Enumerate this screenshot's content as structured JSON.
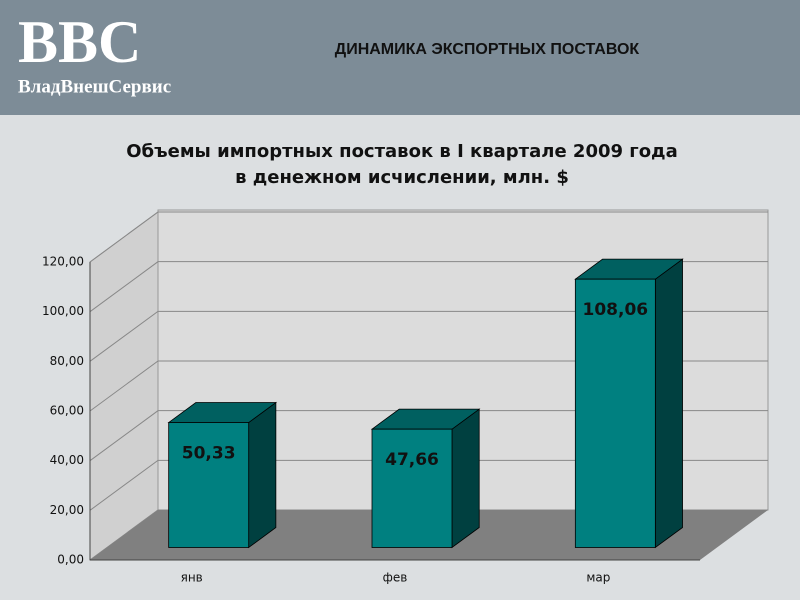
{
  "header": {
    "logo": "BBC",
    "logo_subtitle": "ВладВнешСервис",
    "title": "ДИНАМИКА ЭКСПОРТНЫХ ПОСТАВОК"
  },
  "chart_data": {
    "type": "bar3d",
    "title": [
      "Объемы импортных поставок в I квартале 2009 года",
      "в денежном исчислении, млн. $"
    ],
    "categories": [
      "янв",
      "фев",
      "мар"
    ],
    "values": [
      50.33,
      47.66,
      108.06
    ],
    "value_labels": [
      "50,33",
      "47,66",
      "108,06"
    ],
    "color": "#008080",
    "ylim": [
      0,
      120
    ],
    "yticks": [
      {
        "value": 0,
        "label": "0,00"
      },
      {
        "value": 20,
        "label": "20,00"
      },
      {
        "value": 40,
        "label": "40,00"
      },
      {
        "value": 60,
        "label": "60,00"
      },
      {
        "value": 80,
        "label": "80,00"
      },
      {
        "value": 100,
        "label": "100,00"
      },
      {
        "value": 120,
        "label": "120,00"
      }
    ],
    "grid": true
  }
}
